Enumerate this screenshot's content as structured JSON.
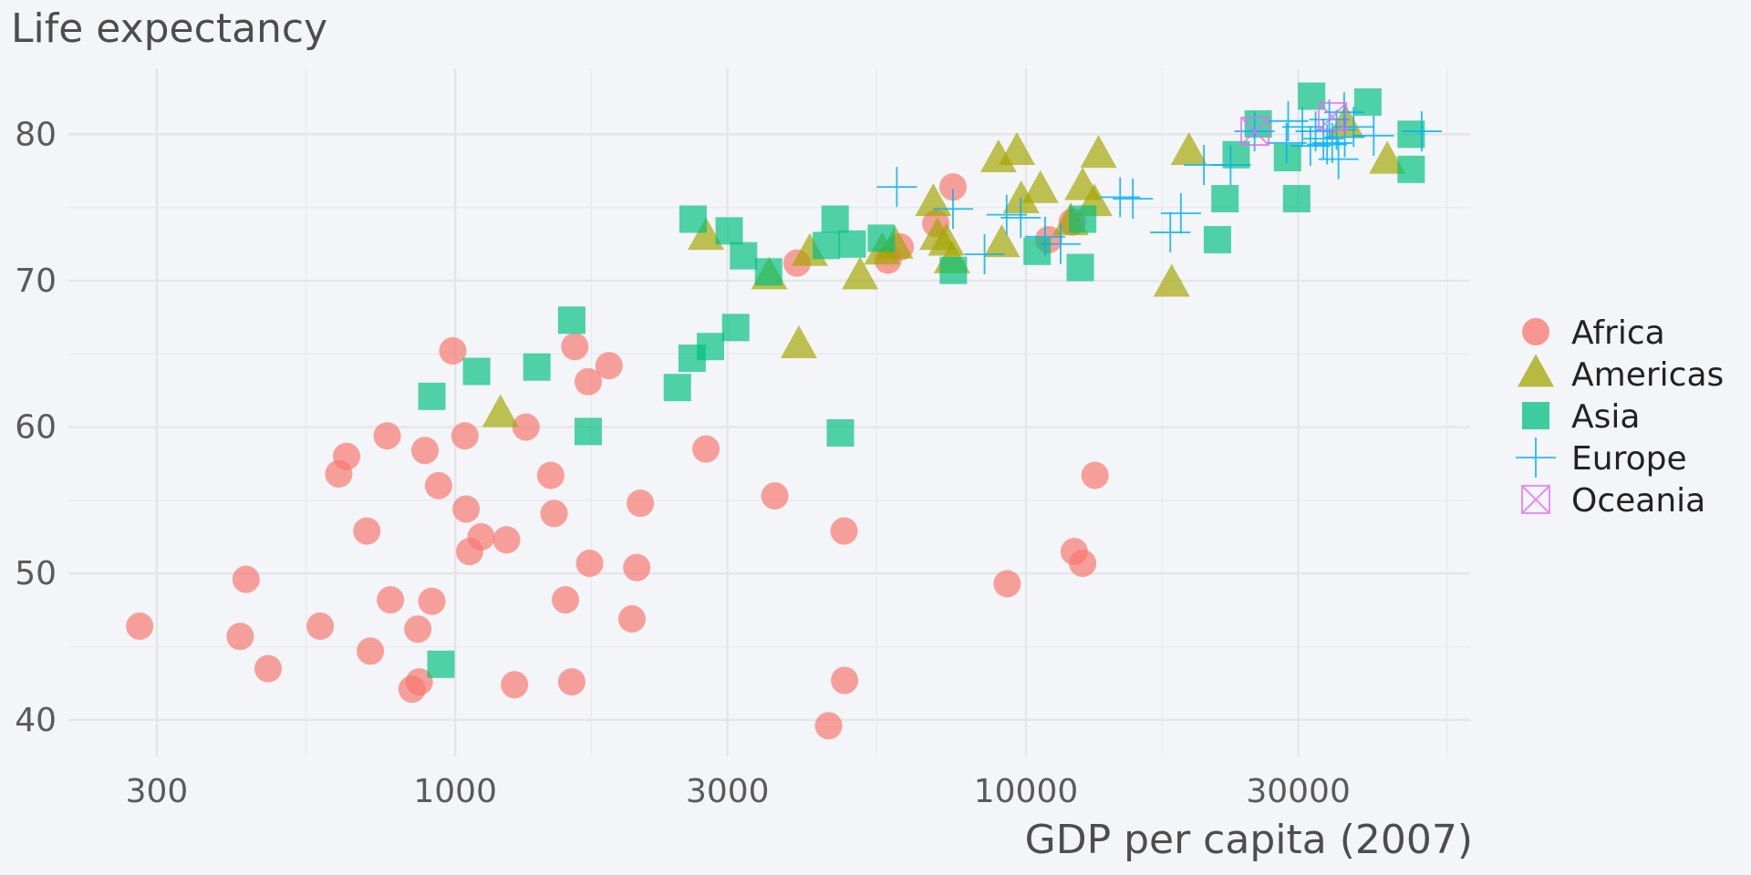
{
  "chart_data": {
    "type": "scatter",
    "title": "",
    "ylabel": "Life expectancy",
    "xlabel": "GDP per capita (2007)",
    "xscale": "log10",
    "xlim": [
      210,
      60000
    ],
    "ylim": [
      37.5,
      84.5
    ],
    "xticks": [
      300,
      1000,
      3000,
      10000,
      30000
    ],
    "xtick_labels": [
      "300",
      "1000",
      "3000",
      "10000",
      "30000"
    ],
    "yticks": [
      40,
      50,
      60,
      70,
      80
    ],
    "ytick_labels": [
      "40",
      "50",
      "60",
      "70",
      "80"
    ],
    "grid": true,
    "legend_position": "right",
    "series": [
      {
        "name": "Africa",
        "shape": "circle",
        "color": "#F8766D",
        "points": [
          [
            280,
            46.4
          ],
          [
            420,
            45.7
          ],
          [
            430,
            49.6
          ],
          [
            470,
            43.5
          ],
          [
            580,
            46.4
          ],
          [
            625,
            56.8
          ],
          [
            645,
            58.0
          ],
          [
            700,
            52.9
          ],
          [
            710,
            44.7
          ],
          [
            760,
            59.4
          ],
          [
            770,
            48.2
          ],
          [
            840,
            42.1
          ],
          [
            860,
            46.2
          ],
          [
            865,
            42.6
          ],
          [
            885,
            58.4
          ],
          [
            910,
            48.1
          ],
          [
            935,
            56.0
          ],
          [
            990,
            65.2
          ],
          [
            1040,
            59.4
          ],
          [
            1045,
            54.4
          ],
          [
            1060,
            51.5
          ],
          [
            1110,
            52.5
          ],
          [
            1230,
            52.3
          ],
          [
            1270,
            42.4
          ],
          [
            1330,
            60.0
          ],
          [
            1470,
            56.7
          ],
          [
            1490,
            54.1
          ],
          [
            1560,
            48.2
          ],
          [
            1600,
            42.6
          ],
          [
            1620,
            65.5
          ],
          [
            1710,
            63.1
          ],
          [
            1720,
            50.7
          ],
          [
            1860,
            64.2
          ],
          [
            2040,
            46.9
          ],
          [
            2080,
            50.4
          ],
          [
            2110,
            54.8
          ],
          [
            2750,
            58.5
          ],
          [
            3630,
            55.3
          ],
          [
            3970,
            71.2
          ],
          [
            4510,
            39.6
          ],
          [
            4800,
            52.9
          ],
          [
            4810,
            42.7
          ],
          [
            5730,
            71.4
          ],
          [
            6020,
            72.3
          ],
          [
            6950,
            73.9
          ],
          [
            7450,
            76.4
          ],
          [
            9270,
            49.3
          ],
          [
            10960,
            72.8
          ],
          [
            12050,
            74.0
          ],
          [
            12150,
            51.5
          ],
          [
            12570,
            50.7
          ],
          [
            13210,
            56.7
          ]
        ]
      },
      {
        "name": "Americas",
        "shape": "triangle",
        "color": "#A3A500",
        "points": [
          [
            1200,
            60.9
          ],
          [
            2750,
            73.0
          ],
          [
            3550,
            70.3
          ],
          [
            4000,
            65.6
          ],
          [
            4180,
            71.9
          ],
          [
            5120,
            70.3
          ],
          [
            5600,
            72.0
          ],
          [
            5900,
            72.4
          ],
          [
            6880,
            75.3
          ],
          [
            7000,
            73.0
          ],
          [
            7250,
            72.6
          ],
          [
            7420,
            71.4
          ],
          [
            8950,
            78.3
          ],
          [
            9070,
            72.5
          ],
          [
            9640,
            78.8
          ],
          [
            9810,
            75.5
          ],
          [
            10600,
            76.2
          ],
          [
            11980,
            74.0
          ],
          [
            12570,
            76.4
          ],
          [
            13170,
            75.3
          ],
          [
            13400,
            78.6
          ],
          [
            18000,
            69.8
          ],
          [
            19300,
            78.8
          ],
          [
            36300,
            80.7
          ],
          [
            42950,
            78.2
          ]
        ]
      },
      {
        "name": "Asia",
        "shape": "square",
        "color": "#00BF7D",
        "points": [
          [
            944,
            43.8
          ],
          [
            910,
            62.1
          ],
          [
            1090,
            63.8
          ],
          [
            1390,
            64.1
          ],
          [
            1600,
            67.3
          ],
          [
            1710,
            59.7
          ],
          [
            2450,
            62.7
          ],
          [
            2600,
            64.7
          ],
          [
            2610,
            74.2
          ],
          [
            2800,
            65.5
          ],
          [
            3020,
            73.4
          ],
          [
            3100,
            66.8
          ],
          [
            3200,
            71.7
          ],
          [
            3540,
            70.6
          ],
          [
            4470,
            72.4
          ],
          [
            4630,
            74.2
          ],
          [
            4730,
            59.6
          ],
          [
            4960,
            72.5
          ],
          [
            5580,
            72.9
          ],
          [
            7460,
            70.7
          ],
          [
            10460,
            72.0
          ],
          [
            12450,
            70.9
          ],
          [
            12570,
            74.2
          ],
          [
            21650,
            72.8
          ],
          [
            22320,
            75.6
          ],
          [
            23350,
            78.6
          ],
          [
            25520,
            80.7
          ],
          [
            28720,
            78.4
          ],
          [
            29800,
            75.6
          ],
          [
            31650,
            82.6
          ],
          [
            39720,
            82.2
          ],
          [
            47300,
            80.0
          ],
          [
            47300,
            77.6
          ]
        ]
      },
      {
        "name": "Europe",
        "shape": "plus",
        "color": "#00B0F6",
        "points": [
          [
            5940,
            76.4
          ],
          [
            7450,
            74.9
          ],
          [
            8460,
            71.8
          ],
          [
            9250,
            74.5
          ],
          [
            9790,
            74.3
          ],
          [
            10800,
            73.0
          ],
          [
            11500,
            72.5
          ],
          [
            14620,
            75.7
          ],
          [
            15390,
            75.6
          ],
          [
            17900,
            73.3
          ],
          [
            18680,
            74.6
          ],
          [
            20500,
            77.9
          ],
          [
            22830,
            77.9
          ],
          [
            25150,
            80.2
          ],
          [
            28600,
            79.4
          ],
          [
            28800,
            80.9
          ],
          [
            30500,
            80.5
          ],
          [
            32170,
            80.2
          ],
          [
            33200,
            79.7
          ],
          [
            33700,
            79.3
          ],
          [
            34400,
            79.4
          ],
          [
            35280,
            78.3
          ],
          [
            36100,
            81.5
          ],
          [
            36180,
            79.8
          ],
          [
            37500,
            80.5
          ],
          [
            40670,
            79.9
          ],
          [
            49360,
            80.2
          ],
          [
            34000,
            81.0
          ],
          [
            35000,
            80.3
          ],
          [
            31500,
            79.2
          ]
        ]
      },
      {
        "name": "Oceania",
        "shape": "square-x",
        "color": "#E76BF3",
        "points": [
          [
            25185,
            80.2
          ],
          [
            34435,
            81.2
          ]
        ]
      }
    ]
  }
}
